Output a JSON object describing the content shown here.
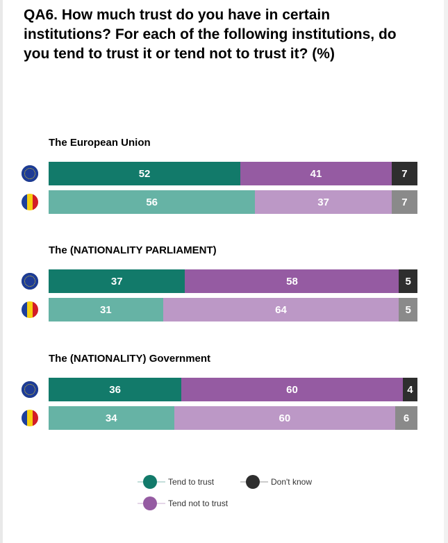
{
  "title": "QA6. How much trust do you have in certain institutions? For each of the following institutions, do you tend to trust it or tend not to trust it? (%)",
  "colors": {
    "trust_eu": "#127a6a",
    "trust_ro": "#66b3a5",
    "not_trust_eu": "#955ba2",
    "not_trust_ro": "#bc98c6",
    "dk_eu": "#2e2e2e",
    "dk_ro": "#8a8a8a"
  },
  "legend": {
    "trust": "Tend to trust",
    "not_trust": "Tend not to trust",
    "dont_know": "Don't know"
  },
  "chart_data": {
    "type": "bar",
    "orientation": "horizontal-stacked",
    "title": "QA6. How much trust do you have in certain institutions? For each of the following institutions, do you tend to trust it or tend not to trust it? (%)",
    "series_names": [
      "Tend to trust",
      "Tend not to trust",
      "Don't know"
    ],
    "groups": [
      {
        "label": "The European Union",
        "rows": [
          {
            "flag": "eu-flag-icon",
            "values": [
              52,
              41,
              7
            ]
          },
          {
            "flag": "romania-flag-icon",
            "values": [
              56,
              37,
              7
            ]
          }
        ]
      },
      {
        "label": "The (NATIONALITY PARLIAMENT)",
        "rows": [
          {
            "flag": "eu-flag-icon",
            "values": [
              37,
              58,
              5
            ]
          },
          {
            "flag": "romania-flag-icon",
            "values": [
              31,
              64,
              5
            ]
          }
        ]
      },
      {
        "label": "The (NATIONALITY) Government",
        "rows": [
          {
            "flag": "eu-flag-icon",
            "values": [
              36,
              60,
              4
            ]
          },
          {
            "flag": "romania-flag-icon",
            "values": [
              34,
              60,
              6
            ]
          }
        ]
      }
    ],
    "xlim": [
      0,
      100
    ],
    "grid": false,
    "legend_position": "bottom"
  }
}
